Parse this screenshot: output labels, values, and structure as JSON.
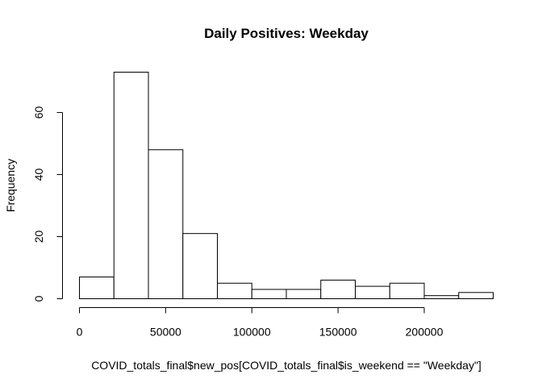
{
  "chart_data": {
    "type": "bar",
    "title": "Daily Positives: Weekday",
    "xlabel": "COVID_totals_final$new_pos[COVID_totals_final$is_weekend == \"Weekday\"]",
    "ylabel": "Frequency",
    "bin_edges": [
      0,
      20000,
      40000,
      60000,
      80000,
      100000,
      120000,
      140000,
      160000,
      180000,
      200000,
      220000,
      240000
    ],
    "values": [
      7,
      73,
      48,
      21,
      5,
      3,
      3,
      6,
      4,
      5,
      1,
      2
    ],
    "xlim": [
      0,
      240000
    ],
    "ylim": [
      0,
      73
    ],
    "x_ticks": [
      0,
      50000,
      100000,
      150000,
      200000
    ],
    "y_ticks": [
      0,
      20,
      40,
      60
    ],
    "grid": false,
    "colors": {
      "bar_fill": "#ffffff",
      "bar_stroke": "#000000"
    }
  }
}
